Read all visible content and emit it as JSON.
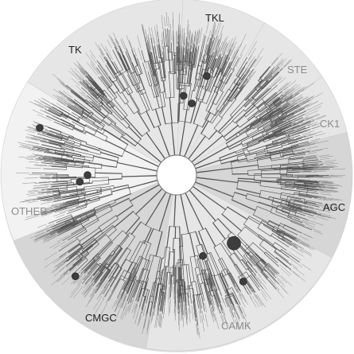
{
  "title": "",
  "colors": {
    "disc": "#dcdcdc",
    "sector_light": "#f2f2f2",
    "sector_mid": "#e6e6e6",
    "sector_dark": "#d6d6d6",
    "branch": "#545454",
    "leaf_text": "#8a8a8a",
    "marker": "#3d3d3d",
    "center": "#ffffff"
  },
  "groups": [
    {
      "key": "tkl",
      "label": "TKL",
      "tone": "dark",
      "start": -88,
      "end": -60
    },
    {
      "key": "ste",
      "label": "STE",
      "tone": "light",
      "start": -60,
      "end": -34
    },
    {
      "key": "ck1",
      "label": "CK1",
      "tone": "light",
      "start": -34,
      "end": -14
    },
    {
      "key": "agc",
      "label": "AGC",
      "tone": "dark",
      "start": -14,
      "end": 28
    },
    {
      "key": "camk",
      "label": "CAMK",
      "tone": "light",
      "start": 28,
      "end": 100
    },
    {
      "key": "cmgc",
      "label": "CMGC",
      "tone": "dark",
      "start": 100,
      "end": 158
    },
    {
      "key": "other",
      "label": "OTHER",
      "tone": "light",
      "start": 158,
      "end": 212
    },
    {
      "key": "tk",
      "label": "TK",
      "tone": "dark",
      "start": 212,
      "end": 272
    }
  ],
  "markers": [
    {
      "group": "tkl",
      "size": "small"
    },
    {
      "group": "tkl",
      "size": "small"
    },
    {
      "group": "tkl",
      "size": "small"
    },
    {
      "group": "other",
      "size": "small"
    },
    {
      "group": "other",
      "size": "small"
    },
    {
      "group": "other",
      "size": "small"
    },
    {
      "group": "cmgc",
      "size": "small"
    },
    {
      "group": "camk",
      "size": "small"
    },
    {
      "group": "camk",
      "size": "large"
    },
    {
      "group": "camk",
      "size": "small"
    }
  ]
}
